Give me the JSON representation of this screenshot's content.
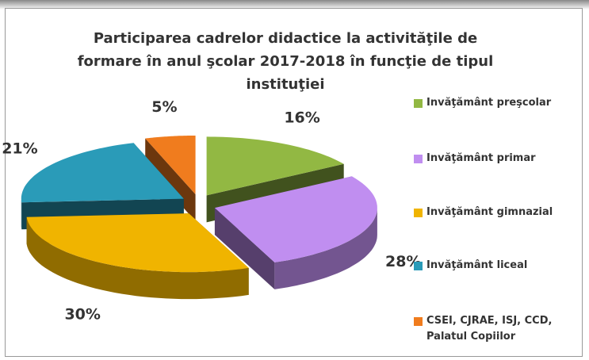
{
  "chart_data": {
    "type": "pie3d",
    "title": "Participarea cadrelor didactice la activităţile de formare în anul şcolar 2017-2018 în funcţie de tipul instituţiei",
    "categories": [
      "Invăţământ preşcolar",
      "Invăţământ  primar",
      "Invăţământ gimnazial",
      "Invăţământ liceal",
      "CSEI, CJRAE, ISJ, CCD, Palatul Copiilor"
    ],
    "values": [
      16,
      28,
      30,
      21,
      5
    ],
    "value_labels": [
      "16%",
      "28%",
      "30%",
      "21%",
      "5%"
    ],
    "colors": [
      "#92b843",
      "#c08ef0",
      "#f0b400",
      "#2a9bb8",
      "#f07c1e"
    ],
    "legend": "right"
  }
}
